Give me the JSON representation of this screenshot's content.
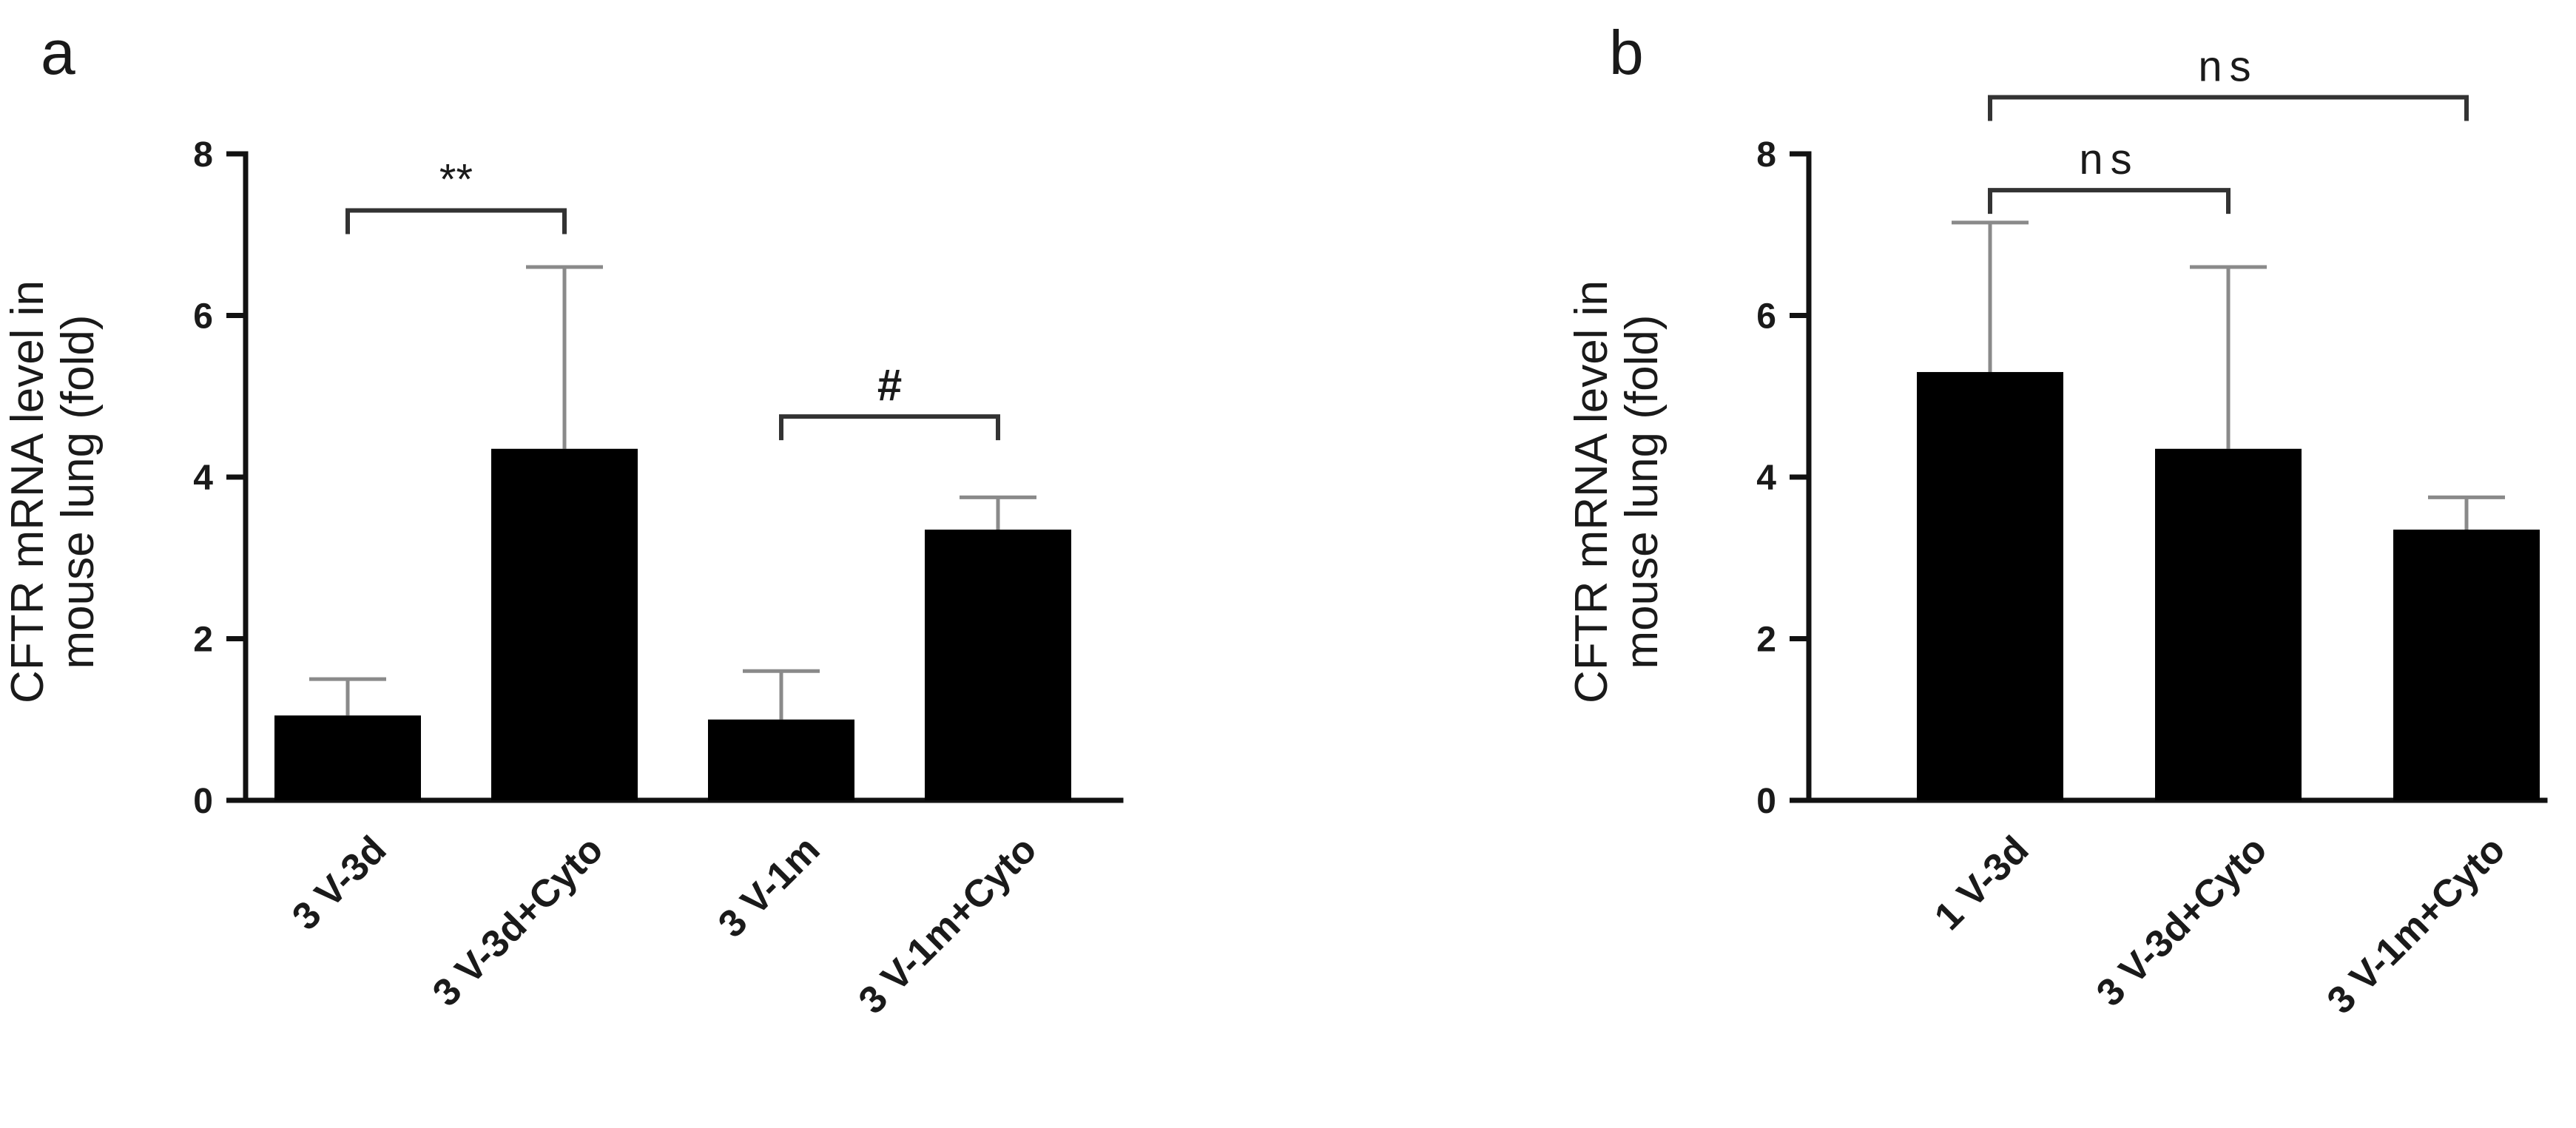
{
  "chart_data": [
    {
      "panel": "a",
      "type": "bar",
      "ylabel_lines": [
        "CFTR mRNA level in",
        "mouse lung (fold)"
      ],
      "ylim": [
        0,
        8
      ],
      "yticks": [
        0,
        2,
        4,
        6,
        8
      ],
      "categories": [
        "3 V-3d",
        "3 V-3d+Cyto",
        "3 V-1m",
        "3 V-1m+Cyto"
      ],
      "values": [
        1.05,
        4.35,
        1.0,
        3.35
      ],
      "errors": [
        0.45,
        2.25,
        0.6,
        0.4
      ],
      "bar_color": "#000000",
      "error_color": "#8a8a8a",
      "significance": [
        {
          "from": 0,
          "to": 1,
          "label": "**",
          "y": 7.3
        },
        {
          "from": 2,
          "to": 3,
          "label": "#",
          "y": 4.75
        }
      ]
    },
    {
      "panel": "b",
      "type": "bar",
      "ylabel_lines": [
        "CFTR mRNA level in",
        "mouse lung (fold)"
      ],
      "ylim": [
        0,
        8
      ],
      "yticks": [
        0,
        2,
        4,
        6,
        8
      ],
      "categories": [
        "1 V-3d",
        "3 V-3d+Cyto",
        "3 V-1m+Cyto"
      ],
      "values": [
        5.3,
        4.35,
        3.35
      ],
      "errors": [
        1.85,
        2.25,
        0.4
      ],
      "bar_color": "#000000",
      "error_color": "#8a8a8a",
      "significance": [
        {
          "from": 0,
          "to": 1,
          "label": "ns",
          "y": 7.55
        },
        {
          "from": 0,
          "to": 2,
          "label": "ns",
          "y": 8.7
        }
      ]
    }
  ]
}
